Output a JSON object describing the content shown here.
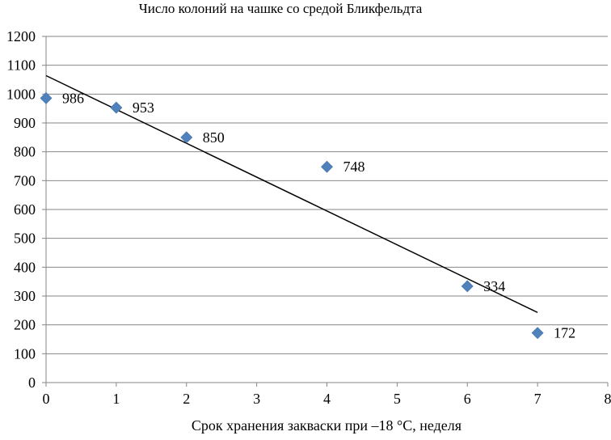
{
  "chart_data": {
    "type": "scatter",
    "title": "Число колоний на чашке со средой Бликфельдта",
    "xlabel": "Срок хранения закваски при –18 °С, неделя",
    "ylabel": "",
    "xlim": [
      0,
      8
    ],
    "ylim": [
      0,
      1200
    ],
    "x_ticks": [
      0,
      1,
      2,
      3,
      4,
      5,
      6,
      7,
      8
    ],
    "y_ticks": [
      0,
      100,
      200,
      300,
      400,
      500,
      600,
      700,
      800,
      900,
      1000,
      1100,
      1200
    ],
    "grid": {
      "horizontal": true,
      "vertical": false
    },
    "series": [
      {
        "x": [
          0,
          1,
          2,
          4,
          6,
          7
        ],
        "values": [
          986,
          953,
          850,
          748,
          334,
          172
        ],
        "data_labels": [
          "986",
          "953",
          "850",
          "748",
          "334",
          "172"
        ],
        "marker": "diamond",
        "color": "#4f81bd"
      }
    ],
    "trendline": {
      "type": "linear",
      "x": [
        0,
        7
      ],
      "values": [
        1064,
        243
      ],
      "color": "#000000"
    }
  }
}
